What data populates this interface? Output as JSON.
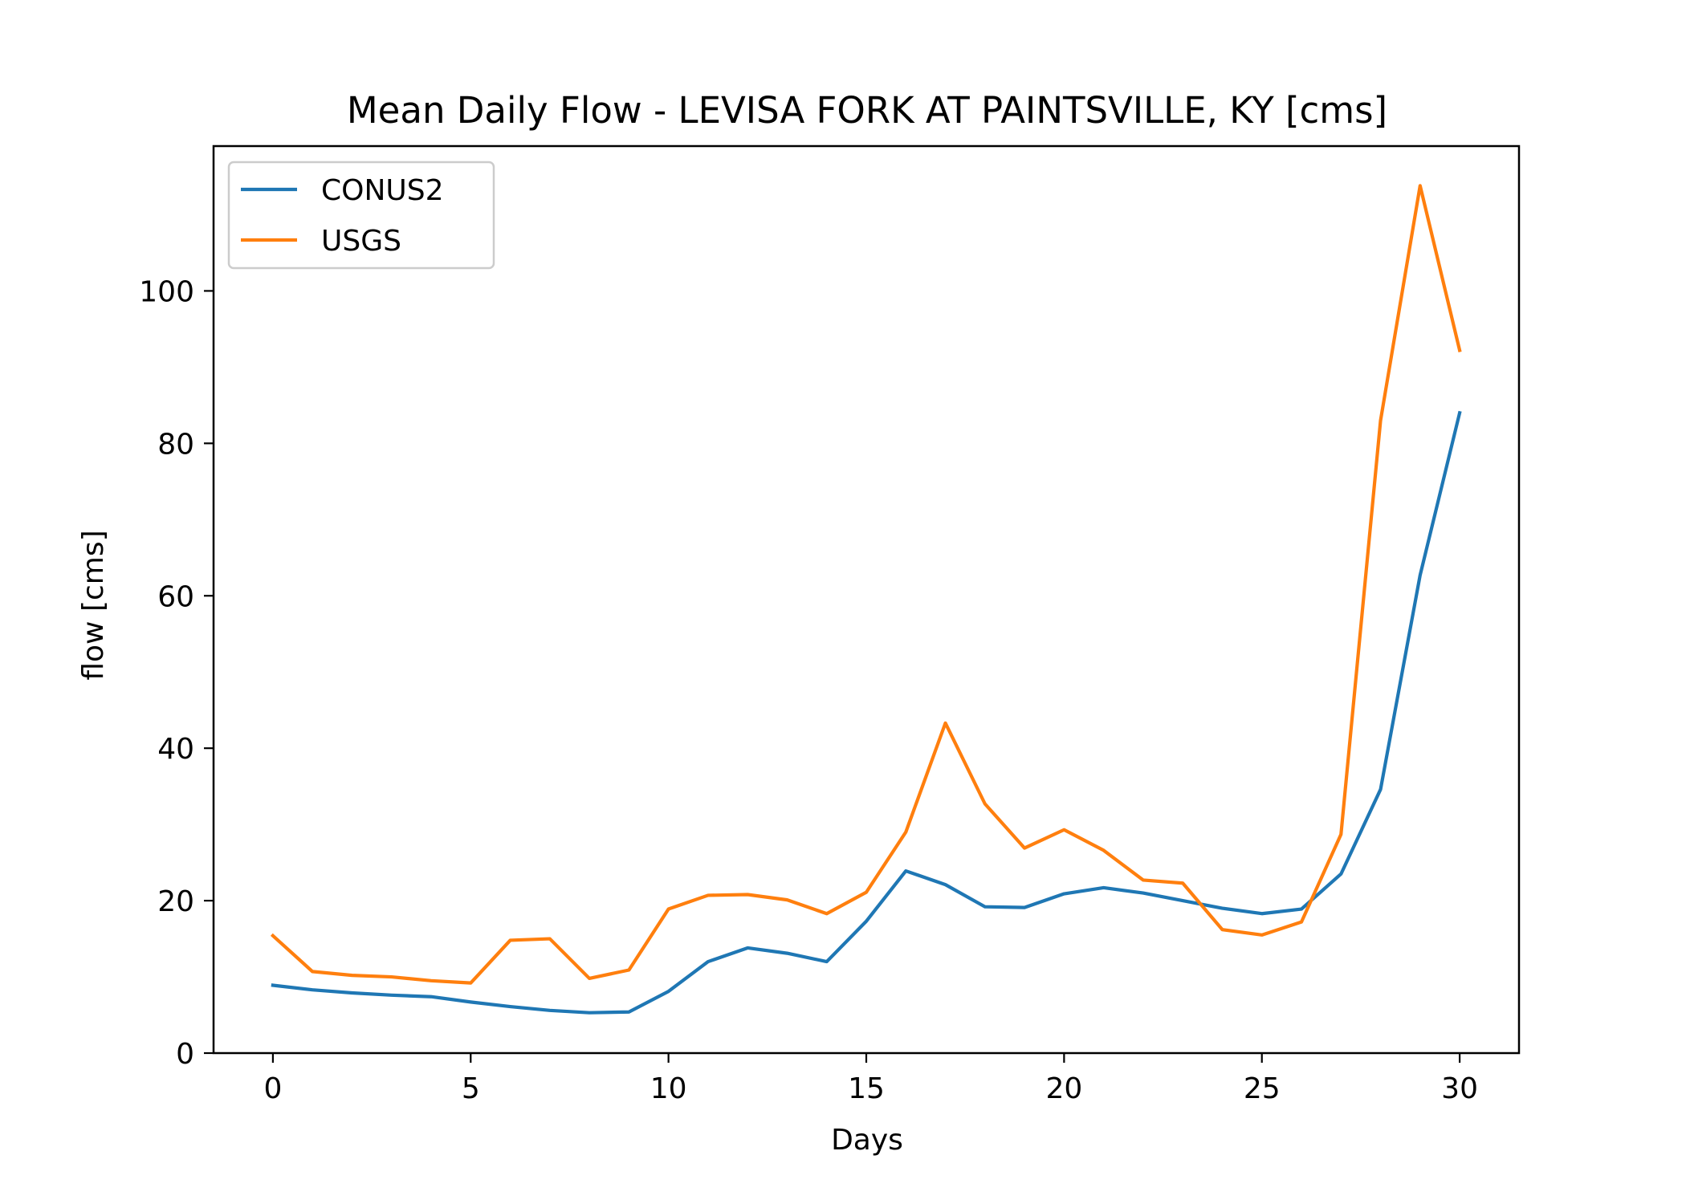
{
  "chart_data": {
    "type": "line",
    "title": "Mean Daily Flow - LEVISA FORK AT PAINTSVILLE, KY [cms]",
    "xlabel": "Days",
    "ylabel": "flow [cms]",
    "xlim": [
      -1.5,
      31.5
    ],
    "ylim": [
      0,
      119
    ],
    "xticks": [
      0,
      5,
      10,
      15,
      20,
      25,
      30
    ],
    "yticks": [
      0,
      20,
      40,
      60,
      80,
      100
    ],
    "grid": false,
    "legend_position": "upper left",
    "x": [
      0,
      1,
      2,
      3,
      4,
      5,
      6,
      7,
      8,
      9,
      10,
      11,
      12,
      13,
      14,
      15,
      16,
      17,
      18,
      19,
      20,
      21,
      22,
      23,
      24,
      25,
      26,
      27,
      28,
      29,
      30
    ],
    "series": [
      {
        "name": "CONUS2",
        "color": "#1f77b4",
        "values": [
          8.9,
          8.3,
          7.9,
          7.6,
          7.4,
          6.7,
          6.1,
          5.6,
          5.3,
          5.4,
          8.1,
          12.0,
          13.8,
          13.1,
          12.0,
          17.3,
          23.9,
          22.1,
          19.2,
          19.1,
          20.9,
          21.7,
          21.0,
          20.0,
          19.0,
          18.3,
          18.9,
          23.5,
          34.6,
          62.7,
          84.0
        ]
      },
      {
        "name": "USGS",
        "color": "#ff7f0e",
        "values": [
          15.4,
          10.7,
          10.2,
          10.0,
          9.5,
          9.2,
          14.8,
          15.0,
          9.8,
          10.9,
          18.9,
          20.7,
          20.8,
          20.1,
          18.3,
          21.1,
          29.0,
          43.3,
          32.7,
          26.9,
          29.3,
          26.6,
          22.7,
          22.3,
          16.2,
          15.5,
          17.2,
          28.7,
          83.0,
          113.8,
          92.2
        ]
      }
    ]
  }
}
